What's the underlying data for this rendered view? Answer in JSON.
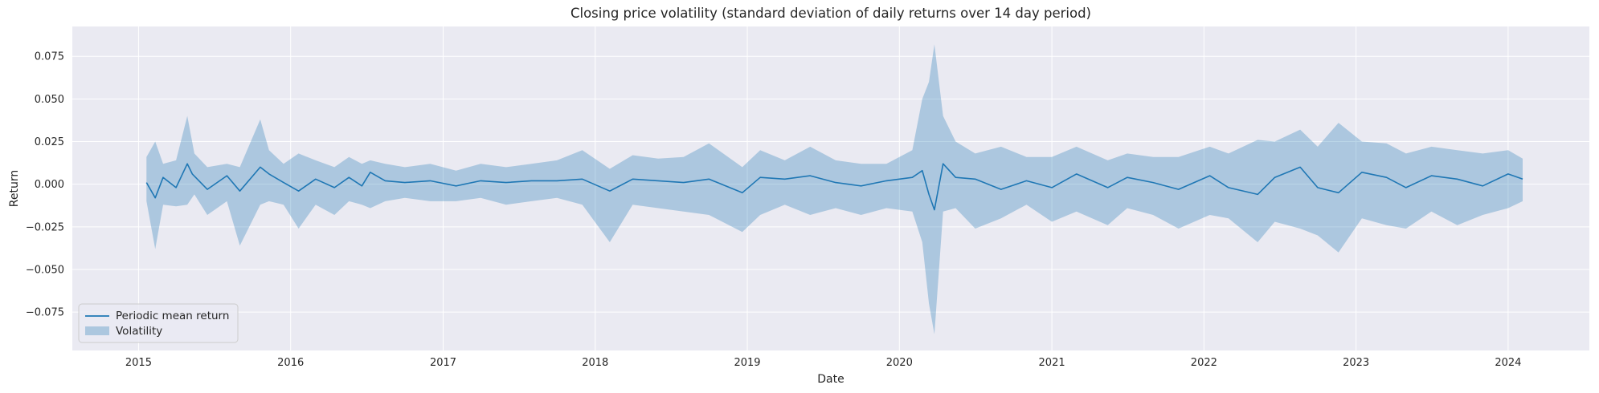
{
  "chart_data": {
    "type": "line",
    "title": "Closing price volatility (standard deviation of daily returns over 14 day period)",
    "xlabel": "Date",
    "ylabel": "Return",
    "xlim": [
      "2014-07-26",
      "2024-07-14"
    ],
    "ylim": [
      -0.0975,
      0.0925
    ],
    "grid": true,
    "legend_position": "lower-left",
    "x_ticks": [
      {
        "value": "2015-01-01",
        "label": "2015"
      },
      {
        "value": "2016-01-01",
        "label": "2016"
      },
      {
        "value": "2017-01-01",
        "label": "2017"
      },
      {
        "value": "2018-01-01",
        "label": "2018"
      },
      {
        "value": "2019-01-01",
        "label": "2019"
      },
      {
        "value": "2020-01-01",
        "label": "2020"
      },
      {
        "value": "2021-01-01",
        "label": "2021"
      },
      {
        "value": "2022-01-01",
        "label": "2022"
      },
      {
        "value": "2023-01-01",
        "label": "2023"
      },
      {
        "value": "2024-01-01",
        "label": "2024"
      }
    ],
    "y_ticks": [
      {
        "value": 0.075,
        "label": "0.075"
      },
      {
        "value": 0.05,
        "label": "0.050"
      },
      {
        "value": 0.025,
        "label": "0.025"
      },
      {
        "value": 0.0,
        "label": "0.000"
      },
      {
        "value": -0.025,
        "label": "−0.025"
      },
      {
        "value": -0.05,
        "label": "−0.050"
      },
      {
        "value": -0.075,
        "label": "−0.075"
      }
    ],
    "series": [
      {
        "name": "Periodic mean return",
        "kind": "line",
        "color": "#1f77b4",
        "x": [
          "2015-01-20",
          "2015-02-10",
          "2015-03-01",
          "2015-04-01",
          "2015-04-28",
          "2015-05-10",
          "2015-06-15",
          "2015-08-01",
          "2015-09-01",
          "2015-10-20",
          "2015-11-10",
          "2015-12-15",
          "2016-01-20",
          "2016-03-01",
          "2016-04-15",
          "2016-05-20",
          "2016-06-20",
          "2016-07-10",
          "2016-08-15",
          "2016-10-01",
          "2016-12-01",
          "2017-02-01",
          "2017-04-01",
          "2017-06-01",
          "2017-08-01",
          "2017-10-01",
          "2017-12-01",
          "2018-02-05",
          "2018-04-01",
          "2018-06-01",
          "2018-08-01",
          "2018-10-01",
          "2018-12-20",
          "2019-02-01",
          "2019-04-01",
          "2019-06-01",
          "2019-08-01",
          "2019-10-01",
          "2019-12-01",
          "2020-02-01",
          "2020-02-25",
          "2020-03-12",
          "2020-03-25",
          "2020-04-15",
          "2020-05-15",
          "2020-07-01",
          "2020-09-01",
          "2020-11-01",
          "2021-01-01",
          "2021-03-01",
          "2021-05-15",
          "2021-07-01",
          "2021-09-01",
          "2021-11-01",
          "2022-01-15",
          "2022-03-01",
          "2022-05-10",
          "2022-06-20",
          "2022-08-20",
          "2022-10-01",
          "2022-11-20",
          "2023-01-15",
          "2023-03-15",
          "2023-05-01",
          "2023-07-01",
          "2023-09-01",
          "2023-11-01",
          "2024-01-01",
          "2024-02-05"
        ],
        "values": [
          0.001,
          -0.008,
          0.004,
          -0.002,
          0.012,
          0.006,
          -0.003,
          0.005,
          -0.004,
          0.01,
          0.006,
          0.001,
          -0.004,
          0.003,
          -0.002,
          0.004,
          -0.001,
          0.007,
          0.002,
          0.001,
          0.002,
          -0.001,
          0.002,
          0.001,
          0.002,
          0.002,
          0.003,
          -0.004,
          0.003,
          0.002,
          0.001,
          0.003,
          -0.005,
          0.004,
          0.003,
          0.005,
          0.001,
          -0.001,
          0.002,
          0.004,
          0.008,
          -0.006,
          -0.015,
          0.012,
          0.004,
          0.003,
          -0.003,
          0.002,
          -0.002,
          0.006,
          -0.002,
          0.004,
          0.001,
          -0.003,
          0.005,
          -0.002,
          -0.006,
          0.004,
          0.01,
          -0.002,
          -0.005,
          0.007,
          0.004,
          -0.002,
          0.005,
          0.003,
          -0.001,
          0.006,
          0.003
        ]
      },
      {
        "name": "Volatility",
        "kind": "band",
        "color": "#1f77b4",
        "x": [
          "2015-01-20",
          "2015-02-10",
          "2015-03-01",
          "2015-04-01",
          "2015-04-28",
          "2015-05-15",
          "2015-06-15",
          "2015-08-01",
          "2015-09-01",
          "2015-10-20",
          "2015-11-10",
          "2015-12-15",
          "2016-01-20",
          "2016-03-01",
          "2016-04-15",
          "2016-05-20",
          "2016-06-20",
          "2016-07-10",
          "2016-08-15",
          "2016-10-01",
          "2016-12-01",
          "2017-02-01",
          "2017-04-01",
          "2017-06-01",
          "2017-08-01",
          "2017-10-01",
          "2017-12-01",
          "2018-02-05",
          "2018-04-01",
          "2018-06-01",
          "2018-08-01",
          "2018-10-01",
          "2018-12-20",
          "2019-02-01",
          "2019-04-01",
          "2019-06-01",
          "2019-08-01",
          "2019-10-01",
          "2019-12-01",
          "2020-02-01",
          "2020-02-25",
          "2020-03-12",
          "2020-03-25",
          "2020-04-15",
          "2020-05-15",
          "2020-07-01",
          "2020-09-01",
          "2020-11-01",
          "2021-01-01",
          "2021-03-01",
          "2021-05-15",
          "2021-07-01",
          "2021-09-01",
          "2021-11-01",
          "2022-01-15",
          "2022-03-01",
          "2022-05-10",
          "2022-06-20",
          "2022-08-20",
          "2022-10-01",
          "2022-11-20",
          "2023-01-15",
          "2023-03-15",
          "2023-05-01",
          "2023-07-01",
          "2023-09-01",
          "2023-11-01",
          "2024-01-01",
          "2024-02-05"
        ],
        "upper": [
          0.016,
          0.025,
          0.012,
          0.014,
          0.04,
          0.018,
          0.01,
          0.012,
          0.01,
          0.038,
          0.02,
          0.012,
          0.018,
          0.014,
          0.01,
          0.016,
          0.012,
          0.014,
          0.012,
          0.01,
          0.012,
          0.008,
          0.012,
          0.01,
          0.012,
          0.014,
          0.02,
          0.009,
          0.017,
          0.015,
          0.016,
          0.024,
          0.01,
          0.02,
          0.014,
          0.022,
          0.014,
          0.012,
          0.012,
          0.02,
          0.05,
          0.06,
          0.082,
          0.04,
          0.025,
          0.018,
          0.022,
          0.016,
          0.016,
          0.022,
          0.014,
          0.018,
          0.016,
          0.016,
          0.022,
          0.018,
          0.026,
          0.025,
          0.032,
          0.022,
          0.036,
          0.025,
          0.024,
          0.018,
          0.022,
          0.02,
          0.018,
          0.02,
          0.015
        ],
        "lower": [
          -0.01,
          -0.038,
          -0.012,
          -0.013,
          -0.012,
          -0.006,
          -0.018,
          -0.01,
          -0.036,
          -0.012,
          -0.01,
          -0.012,
          -0.026,
          -0.012,
          -0.018,
          -0.01,
          -0.012,
          -0.014,
          -0.01,
          -0.008,
          -0.01,
          -0.01,
          -0.008,
          -0.012,
          -0.01,
          -0.008,
          -0.012,
          -0.034,
          -0.012,
          -0.014,
          -0.016,
          -0.018,
          -0.028,
          -0.018,
          -0.012,
          -0.018,
          -0.014,
          -0.018,
          -0.014,
          -0.016,
          -0.034,
          -0.07,
          -0.088,
          -0.016,
          -0.014,
          -0.026,
          -0.02,
          -0.012,
          -0.022,
          -0.016,
          -0.024,
          -0.014,
          -0.018,
          -0.026,
          -0.018,
          -0.02,
          -0.034,
          -0.022,
          -0.026,
          -0.03,
          -0.04,
          -0.02,
          -0.024,
          -0.026,
          -0.016,
          -0.024,
          -0.018,
          -0.014,
          -0.01
        ]
      }
    ],
    "legend": [
      {
        "label": "Periodic mean return",
        "symbol": "line",
        "color": "#1f77b4"
      },
      {
        "label": "Volatility",
        "symbol": "patch",
        "color": "#1f77b4"
      }
    ],
    "colors": {
      "background": "#eaeaf2",
      "grid": "#ffffff"
    }
  }
}
